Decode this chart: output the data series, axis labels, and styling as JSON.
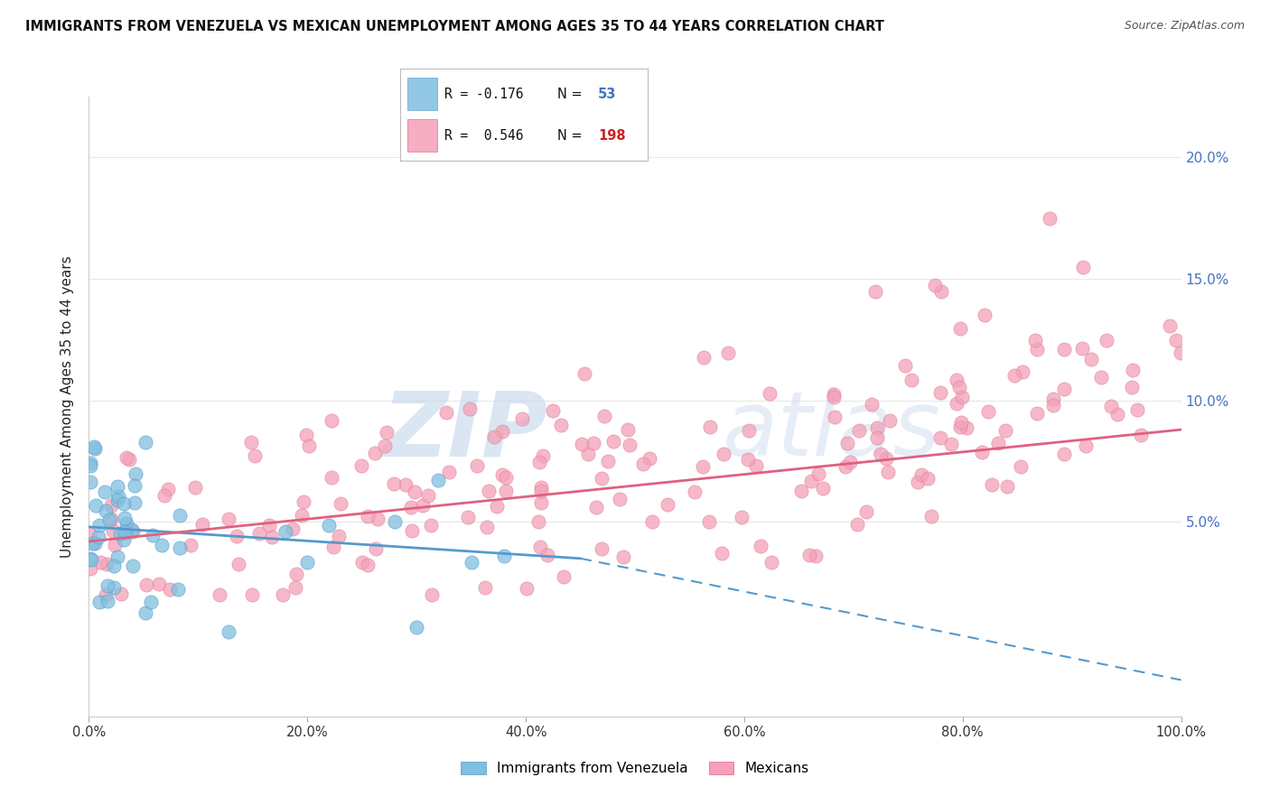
{
  "title": "IMMIGRANTS FROM VENEZUELA VS MEXICAN UNEMPLOYMENT AMONG AGES 35 TO 44 YEARS CORRELATION CHART",
  "source": "Source: ZipAtlas.com",
  "ylabel": "Unemployment Among Ages 35 to 44 years",
  "xlim": [
    0.0,
    1.0
  ],
  "ylim": [
    -0.03,
    0.225
  ],
  "xtick_pos": [
    0.0,
    0.2,
    0.4,
    0.6,
    0.8,
    1.0
  ],
  "xtick_labels": [
    "0.0%",
    "20.0%",
    "40.0%",
    "60.0%",
    "80.0%",
    "100.0%"
  ],
  "ytick_labels": [
    "5.0%",
    "10.0%",
    "15.0%",
    "20.0%"
  ],
  "ytick_positions": [
    0.05,
    0.1,
    0.15,
    0.2
  ],
  "series1_color": "#7fbfdf",
  "series2_color": "#f4a0b8",
  "series1_R": -0.176,
  "series1_N": 53,
  "series2_R": 0.546,
  "series2_N": 198,
  "trend1_color": "#5599cc",
  "trend2_color": "#e06080",
  "watermark_zip": "ZIP",
  "watermark_atlas": "atlas",
  "background_color": "#ffffff",
  "grid_color": "#e8e8e8",
  "right_axis_color": "#4472c4",
  "legend_R1": "R = -0.176",
  "legend_N1": "53",
  "legend_R2": "R =  0.546",
  "legend_N2": "198",
  "legend_label1": "Immigrants from Venezuela",
  "legend_label2": "Mexicans"
}
